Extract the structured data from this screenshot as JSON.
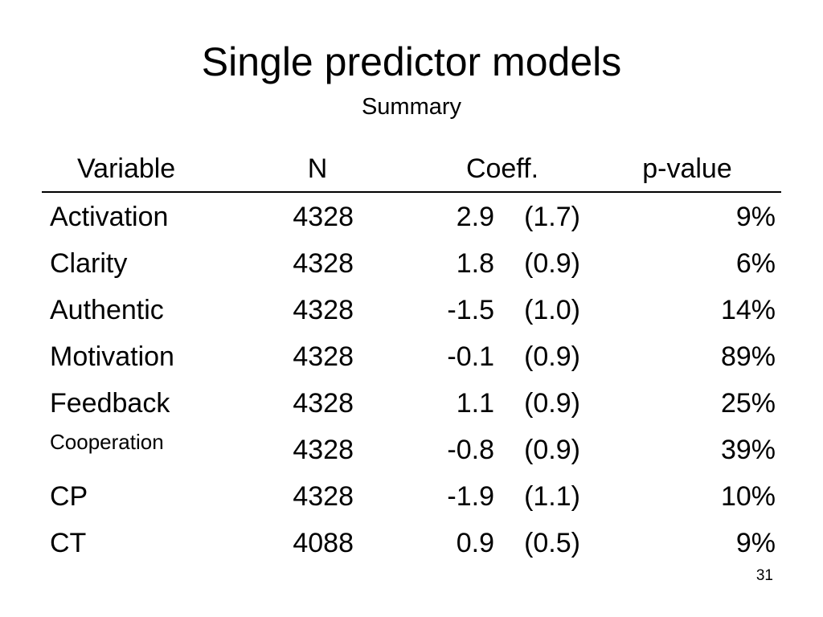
{
  "slide": {
    "title": "Single predictor models",
    "subtitle": "Summary",
    "page_number": "31"
  },
  "table": {
    "headers": {
      "variable": "Variable",
      "n": "N",
      "coeff": "Coeff.",
      "p": "p-value"
    },
    "rows": [
      {
        "variable": "Activation",
        "n": "4328",
        "coeff": "2.9",
        "se": "(1.7)",
        "p": "9%"
      },
      {
        "variable": "Clarity",
        "n": "4328",
        "coeff": "1.8",
        "se": "(0.9)",
        "p": "6%"
      },
      {
        "variable": "Authentic",
        "n": "4328",
        "coeff": "-1.5",
        "se": "(1.0)",
        "p": "14%"
      },
      {
        "variable": "Motivation",
        "n": "4328",
        "coeff": "-0.1",
        "se": "(0.9)",
        "p": "89%"
      },
      {
        "variable": "Feedback",
        "n": "4328",
        "coeff": "1.1",
        "se": "(0.9)",
        "p": "25%"
      },
      {
        "variable": "Cooperation",
        "n": "4328",
        "coeff": "-0.8",
        "se": "(0.9)",
        "p": "39%"
      },
      {
        "variable": "CP",
        "n": "4328",
        "coeff": "-1.9",
        "se": "(1.1)",
        "p": "10%"
      },
      {
        "variable": "CT",
        "n": "4088",
        "coeff": "0.9",
        "se": "(0.5)",
        "p": "9%"
      }
    ]
  }
}
